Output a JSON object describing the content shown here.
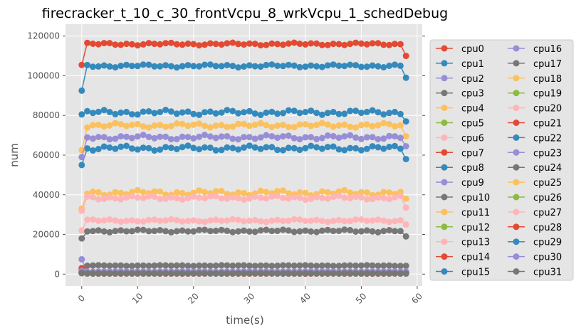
{
  "chart_data": {
    "type": "line",
    "title": "firecracker_t_10_c_30_frontVcpu_8_wrkVcpu_1_schedDebug",
    "xlabel": "time(s)",
    "ylabel": "num",
    "xlim": [
      -2.9,
      60.9
    ],
    "ylim": [
      -6000,
      126000
    ],
    "xticks": [
      0,
      10,
      20,
      30,
      40,
      50,
      60
    ],
    "yticks": [
      0,
      20000,
      40000,
      60000,
      80000,
      100000,
      120000
    ],
    "grid": true,
    "legend_position": "right, outside plot, 2 columns",
    "x": [
      0,
      1,
      2,
      3,
      4,
      5,
      6,
      7,
      8,
      9,
      10,
      11,
      12,
      13,
      14,
      15,
      16,
      17,
      18,
      19,
      20,
      21,
      22,
      23,
      24,
      25,
      26,
      27,
      28,
      29,
      30,
      31,
      32,
      33,
      34,
      35,
      36,
      37,
      38,
      39,
      40,
      41,
      42,
      43,
      44,
      45,
      46,
      47,
      48,
      49,
      50,
      51,
      52,
      53,
      54,
      55,
      56,
      57,
      58
    ],
    "series": [
      {
        "name": "cpu0",
        "color": "#E24A33",
        "base": 116000,
        "amp": 700,
        "first": 105500,
        "last": 110000
      },
      {
        "name": "cpu1",
        "color": "#348ABD",
        "base": 105000,
        "amp": 800,
        "first": 92500,
        "last": 99000
      },
      {
        "name": "cpu2",
        "color": "#988ED5",
        "base": 800,
        "amp": 150,
        "first": 7500,
        "last": 800
      },
      {
        "name": "cpu3",
        "color": "#777777",
        "base": 4300,
        "amp": 200,
        "first": 3000,
        "last": 4200
      },
      {
        "name": "cpu4",
        "color": "#FBC15E",
        "base": 41000,
        "amp": 1400,
        "first": 33000,
        "last": 38000
      },
      {
        "name": "cpu5",
        "color": "#8EBA42",
        "base": 800,
        "amp": 100,
        "first": 1000,
        "last": 800
      },
      {
        "name": "cpu6",
        "color": "#FFB5B8",
        "base": 27000,
        "amp": 700,
        "first": 22000,
        "last": 25000
      },
      {
        "name": "cpu7",
        "color": "#E24A33",
        "base": 900,
        "amp": 100,
        "first": 3000,
        "last": 900
      },
      {
        "name": "cpu8",
        "color": "#348ABD",
        "base": 63500,
        "amp": 1300,
        "first": 55000,
        "last": 58000
      },
      {
        "name": "cpu9",
        "color": "#988ED5",
        "base": 1000,
        "amp": 100,
        "first": 1500,
        "last": 1000
      },
      {
        "name": "cpu10",
        "color": "#777777",
        "base": 21800,
        "amp": 700,
        "first": 18000,
        "last": 19000
      },
      {
        "name": "cpu11",
        "color": "#FBC15E",
        "base": 75000,
        "amp": 1200,
        "first": 62500,
        "last": 69500
      },
      {
        "name": "cpu12",
        "color": "#8EBA42",
        "base": 600,
        "amp": 80,
        "first": 800,
        "last": 600
      },
      {
        "name": "cpu13",
        "color": "#FFB5B8",
        "base": 38500,
        "amp": 1000,
        "first": 32000,
        "last": 33500
      },
      {
        "name": "cpu14",
        "color": "#E24A33",
        "base": 700,
        "amp": 100,
        "first": 2000,
        "last": 700
      },
      {
        "name": "cpu15",
        "color": "#348ABD",
        "base": 81500,
        "amp": 1300,
        "first": 80500,
        "last": 77000
      },
      {
        "name": "cpu16",
        "color": "#988ED5",
        "base": 69000,
        "amp": 1200,
        "first": 59000,
        "last": 64500
      },
      {
        "name": "cpu17",
        "color": "#777777",
        "base": 600,
        "amp": 80,
        "first": 800,
        "last": 600
      },
      {
        "name": "cpu18",
        "color": "#FBC15E",
        "base": 900,
        "amp": 100,
        "first": 1200,
        "last": 900
      },
      {
        "name": "cpu19",
        "color": "#8EBA42",
        "base": 500,
        "amp": 60,
        "first": 700,
        "last": 500
      },
      {
        "name": "cpu20",
        "color": "#FFB5B8",
        "base": 700,
        "amp": 80,
        "first": 900,
        "last": 700
      },
      {
        "name": "cpu21",
        "color": "#E24A33",
        "base": 600,
        "amp": 80,
        "first": 800,
        "last": 600
      },
      {
        "name": "cpu22",
        "color": "#348ABD",
        "base": 500,
        "amp": 60,
        "first": 700,
        "last": 500
      },
      {
        "name": "cpu23",
        "color": "#988ED5",
        "base": 1300,
        "amp": 120,
        "first": 1600,
        "last": 1300
      },
      {
        "name": "cpu24",
        "color": "#777777",
        "base": 500,
        "amp": 60,
        "first": 700,
        "last": 500
      },
      {
        "name": "cpu25",
        "color": "#FBC15E",
        "base": 400,
        "amp": 50,
        "first": 600,
        "last": 400
      },
      {
        "name": "cpu26",
        "color": "#8EBA42",
        "base": 300,
        "amp": 50,
        "first": 500,
        "last": 300
      },
      {
        "name": "cpu27",
        "color": "#FFB5B8",
        "base": 400,
        "amp": 50,
        "first": 600,
        "last": 400
      },
      {
        "name": "cpu28",
        "color": "#E24A33",
        "base": 300,
        "amp": 50,
        "first": 500,
        "last": 300
      },
      {
        "name": "cpu29",
        "color": "#348ABD",
        "base": 400,
        "amp": 50,
        "first": 600,
        "last": 400
      },
      {
        "name": "cpu30",
        "color": "#988ED5",
        "base": 500,
        "amp": 60,
        "first": 700,
        "last": 500
      },
      {
        "name": "cpu31",
        "color": "#777777",
        "base": 400,
        "amp": 50,
        "first": 600,
        "last": 400
      }
    ]
  }
}
